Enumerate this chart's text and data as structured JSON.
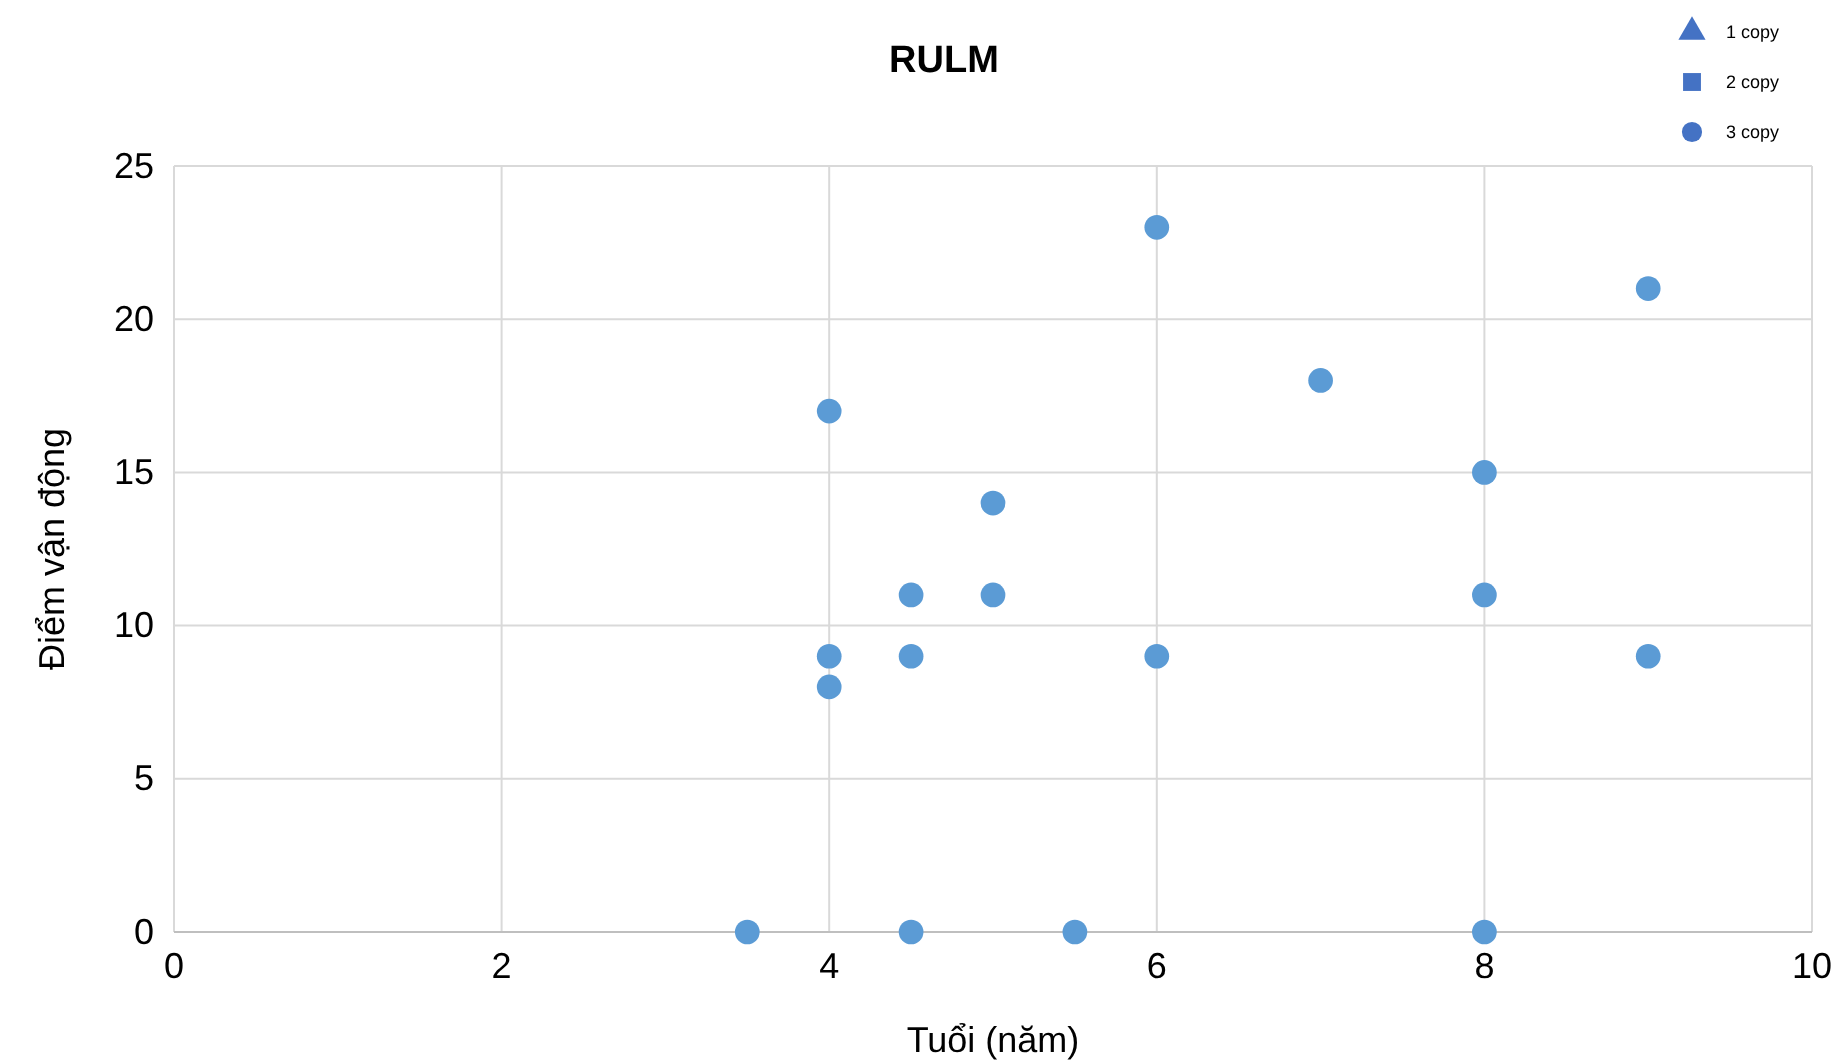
{
  "chart_data": {
    "type": "scatter",
    "title": "RULM",
    "xlabel": "Tuổi (năm)",
    "ylabel": "Điểm vận động",
    "xlim": [
      0,
      10
    ],
    "xticks": [
      0,
      2,
      4,
      6,
      8,
      10
    ],
    "ylim": [
      0,
      25
    ],
    "yticks": [
      0,
      5,
      10,
      15,
      20,
      25
    ],
    "grid": true,
    "legend": "top right",
    "marker": "circle",
    "series": [
      {
        "color": "#5b9bd5",
        "x": [
          3.5,
          4,
          4,
          4,
          4.5,
          4.5,
          4.5,
          5,
          5,
          5.5,
          6,
          6,
          7,
          8,
          8,
          8,
          9,
          9
        ],
        "values": [
          0,
          17,
          9,
          8,
          11,
          9,
          0,
          14,
          11,
          0,
          23,
          9,
          18,
          15,
          11,
          0,
          21,
          9
        ]
      },
      {
        "name": "1 copy",
        "color": "#4472c4",
        "marker": "triangle"
      },
      {
        "name": "2 copy",
        "color": "#4472c4",
        "marker": "square"
      },
      {
        "name": "3 copy",
        "color": "#4472c4",
        "marker": "circle"
      }
    ]
  }
}
